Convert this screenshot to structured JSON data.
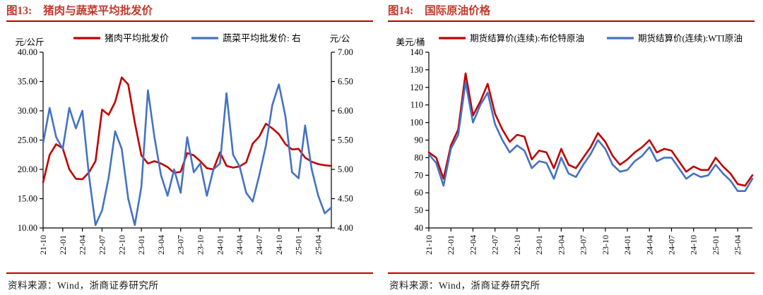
{
  "page": {
    "accent_red": "#C00000",
    "line_red": "#C00000",
    "line_blue": "#4472C4"
  },
  "figures": [
    {
      "label": "图13:",
      "title": "猪肉与蔬菜平均批发价",
      "source": "资料来源：Wind，浙商证券研究所"
    },
    {
      "label": "图14:",
      "title": "国际原油价格",
      "source": "资料来源：Wind，浙商证券研究所"
    }
  ],
  "chart_data": [
    {
      "type": "line",
      "title": "猪肉与蔬菜平均批发价",
      "grid": false,
      "legend_position": "top",
      "x_tick_every": 3,
      "x_tick_labels": [
        "21-10",
        "22-01",
        "22-04",
        "22-07",
        "22-10",
        "23-01",
        "23-04",
        "23-07",
        "23-10",
        "24-01",
        "24-04",
        "24-07",
        "24-10",
        "25-01",
        "25-04"
      ],
      "categories": [
        "21-10",
        "21-11",
        "21-12",
        "22-01",
        "22-02",
        "22-03",
        "22-04",
        "22-05",
        "22-06",
        "22-07",
        "22-08",
        "22-09",
        "22-10",
        "22-11",
        "22-12",
        "23-01",
        "23-02",
        "23-03",
        "23-04",
        "23-05",
        "23-06",
        "23-07",
        "23-08",
        "23-09",
        "23-10",
        "23-11",
        "23-12",
        "24-01",
        "24-02",
        "24-03",
        "24-04",
        "24-05",
        "24-06",
        "24-07",
        "24-08",
        "24-09",
        "24-10",
        "24-11",
        "24-12",
        "25-01",
        "25-02",
        "25-03",
        "25-04",
        "25-05",
        "25-06"
      ],
      "left_axis": {
        "unit": "元/公斤",
        "min": 10,
        "max": 40,
        "step": 5,
        "decimals": 2
      },
      "right_axis": {
        "unit": "元/公",
        "min": 4,
        "max": 7,
        "step": 0.5,
        "decimals": 2
      },
      "series": [
        {
          "name": "猪肉平均批发价",
          "axis": "left",
          "color": "#C00000",
          "values": [
            17.8,
            22.5,
            24.3,
            23.6,
            20.0,
            18.4,
            18.3,
            19.5,
            21.4,
            30.2,
            29.3,
            31.5,
            35.7,
            34.5,
            28.0,
            22.4,
            21.0,
            21.4,
            21.0,
            20.4,
            19.4,
            19.6,
            22.8,
            22.4,
            21.4,
            20.2,
            20.0,
            22.9,
            20.6,
            20.3,
            20.5,
            21.2,
            24.4,
            25.6,
            27.8,
            27.0,
            26.0,
            24.3,
            23.4,
            23.5,
            22.0,
            21.3,
            20.9,
            20.7,
            20.6
          ]
        },
        {
          "name": "蔬菜平均批发价: 右",
          "axis": "right",
          "color": "#4472C4",
          "values": [
            5.45,
            6.05,
            5.55,
            5.35,
            6.05,
            5.7,
            6.0,
            4.9,
            4.05,
            4.3,
            4.85,
            5.65,
            5.35,
            4.5,
            4.05,
            4.7,
            6.35,
            5.55,
            4.9,
            4.55,
            5.0,
            4.6,
            5.55,
            4.95,
            5.1,
            4.55,
            5.0,
            5.1,
            6.3,
            5.25,
            5.05,
            4.6,
            4.45,
            4.9,
            5.4,
            6.1,
            6.45,
            5.9,
            4.95,
            4.85,
            5.75,
            5.0,
            4.55,
            4.25,
            4.35
          ]
        }
      ]
    },
    {
      "type": "line",
      "title": "国际原油价格",
      "grid": false,
      "legend_position": "top",
      "x_tick_every": 3,
      "x_tick_labels": [
        "21-10",
        "22-01",
        "22-04",
        "22-07",
        "22-10",
        "23-01",
        "23-04",
        "23-07",
        "23-10",
        "24-01",
        "24-04",
        "24-07",
        "24-10",
        "25-01",
        "25-04"
      ],
      "categories": [
        "21-10",
        "21-11",
        "21-12",
        "22-01",
        "22-02",
        "22-03",
        "22-04",
        "22-05",
        "22-06",
        "22-07",
        "22-08",
        "22-09",
        "22-10",
        "22-11",
        "22-12",
        "23-01",
        "23-02",
        "23-03",
        "23-04",
        "23-05",
        "23-06",
        "23-07",
        "23-08",
        "23-09",
        "23-10",
        "23-11",
        "23-12",
        "24-01",
        "24-02",
        "24-03",
        "24-04",
        "24-05",
        "24-06",
        "24-07",
        "24-08",
        "24-09",
        "24-10",
        "24-11",
        "24-12",
        "25-01",
        "25-02",
        "25-03",
        "25-04",
        "25-05",
        "25-06"
      ],
      "left_axis": {
        "unit": "美元/桶",
        "min": 40,
        "max": 140,
        "step": 10,
        "decimals": 0
      },
      "series": [
        {
          "name": "期货结算价(连续):布伦特原油",
          "axis": "left",
          "color": "#C00000",
          "values": [
            83,
            80,
            68,
            87,
            96,
            128,
            104,
            112,
            122,
            105,
            96,
            89,
            93,
            92,
            79,
            84,
            83,
            74,
            85,
            76,
            74,
            80,
            86,
            94,
            89,
            81,
            76,
            79,
            83,
            86,
            90,
            83,
            85,
            84,
            78,
            72,
            75,
            73,
            73,
            80,
            75,
            71,
            65,
            64,
            70
          ]
        },
        {
          "name": "期货结算价(连续):WTI原油",
          "axis": "left",
          "color": "#4472C4",
          "values": [
            82,
            77,
            64,
            85,
            93,
            123,
            100,
            110,
            117,
            99,
            90,
            83,
            87,
            84,
            74,
            78,
            77,
            68,
            80,
            71,
            69,
            76,
            82,
            90,
            85,
            76,
            72,
            73,
            78,
            81,
            86,
            78,
            80,
            80,
            74,
            68,
            71,
            69,
            70,
            76,
            71,
            67,
            61,
            61,
            68
          ]
        }
      ]
    }
  ]
}
